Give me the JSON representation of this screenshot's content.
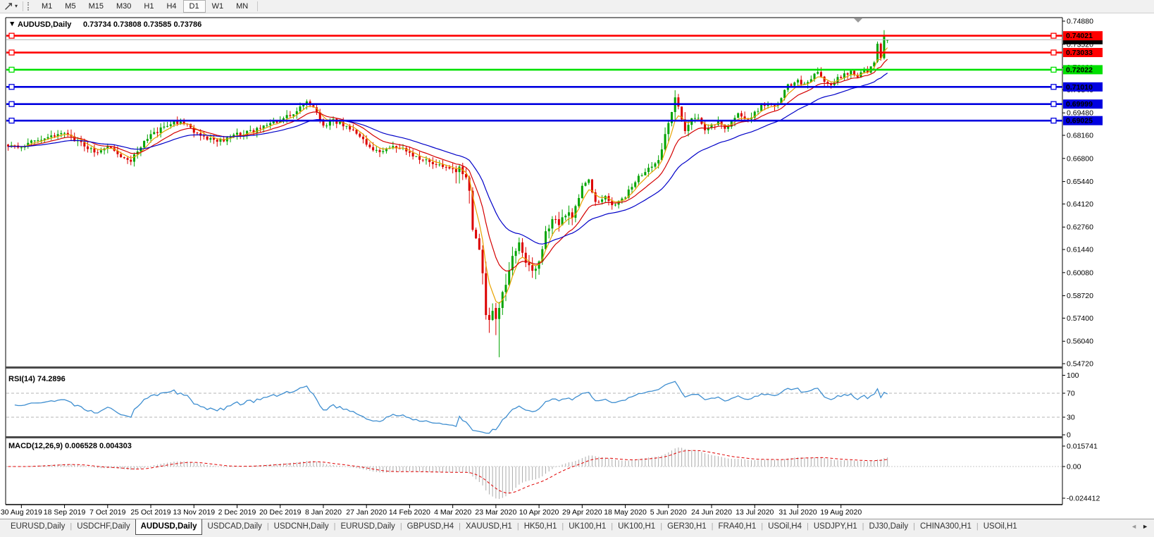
{
  "toolbar": {
    "dropdown_caret": "▾",
    "timeframes": [
      "M1",
      "M5",
      "M15",
      "M30",
      "H1",
      "H4",
      "D1",
      "W1",
      "MN"
    ],
    "active_timeframe": "D1"
  },
  "chart_data": {
    "type": "candlestick",
    "symbol_period": "AUDUSD,Daily",
    "collapse_arrow": "▼",
    "ohlc_text": "0.73734 0.73808 0.73585 0.73786",
    "open": "0.73734",
    "high": "0.73808",
    "low": "0.73585",
    "close": "0.73786",
    "candle_count": 266,
    "y_ticks": [
      {
        "label": "0.74880",
        "value": 0.7488
      },
      {
        "label": "0.73520",
        "value": 0.7352
      },
      {
        "label": "0.72160",
        "value": 0.7216
      },
      {
        "label": "0.70840",
        "value": 0.7084
      },
      {
        "label": "0.69480",
        "value": 0.6948
      },
      {
        "label": "0.68160",
        "value": 0.6816
      },
      {
        "label": "0.66800",
        "value": 0.668
      },
      {
        "label": "0.65440",
        "value": 0.6544
      },
      {
        "label": "0.64120",
        "value": 0.6412
      },
      {
        "label": "0.62760",
        "value": 0.6276
      },
      {
        "label": "0.61440",
        "value": 0.6144
      },
      {
        "label": "0.60080",
        "value": 0.6008
      },
      {
        "label": "0.58720",
        "value": 0.5872
      },
      {
        "label": "0.57400",
        "value": 0.574
      },
      {
        "label": "0.56040",
        "value": 0.5604
      },
      {
        "label": "0.54720",
        "value": 0.5472
      }
    ],
    "x_labels": [
      "30 Aug 2019",
      "18 Sep 2019",
      "7 Oct 2019",
      "25 Oct 2019",
      "13 Nov 2019",
      "2 Dec 2019",
      "20 Dec 2019",
      "8 Jan 2020",
      "27 Jan 2020",
      "14 Feb 2020",
      "4 Mar 2020",
      "23 Mar 2020",
      "10 Apr 2020",
      "29 Apr 2020",
      "18 May 2020",
      "5 Jun 2020",
      "24 Jun 2020",
      "13 Jul 2020",
      "31 Jul 2020",
      "19 Aug 2020"
    ],
    "x_label_first_index": 4,
    "x_label_step": 13,
    "price_anchors": [
      [
        0,
        0.6758
      ],
      [
        2,
        0.6745
      ],
      [
        4,
        0.6733
      ],
      [
        8,
        0.679
      ],
      [
        12,
        0.681
      ],
      [
        17,
        0.683
      ],
      [
        22,
        0.677
      ],
      [
        26,
        0.672
      ],
      [
        30,
        0.6745
      ],
      [
        34,
        0.67
      ],
      [
        37,
        0.667
      ],
      [
        40,
        0.6745
      ],
      [
        43,
        0.6825
      ],
      [
        47,
        0.686
      ],
      [
        50,
        0.6895
      ],
      [
        53,
        0.689
      ],
      [
        56,
        0.684
      ],
      [
        60,
        0.68
      ],
      [
        64,
        0.6785
      ],
      [
        69,
        0.682
      ],
      [
        74,
        0.6845
      ],
      [
        78,
        0.6875
      ],
      [
        82,
        0.69
      ],
      [
        86,
        0.6945
      ],
      [
        90,
        0.702
      ],
      [
        92,
        0.6985
      ],
      [
        95,
        0.687
      ],
      [
        98,
        0.69
      ],
      [
        101,
        0.688
      ],
      [
        104,
        0.685
      ],
      [
        108,
        0.676
      ],
      [
        112,
        0.672
      ],
      [
        116,
        0.675
      ],
      [
        121,
        0.6715
      ],
      [
        124,
        0.668
      ],
      [
        128,
        0.6655
      ],
      [
        131,
        0.662
      ],
      [
        134,
        0.663
      ],
      [
        137,
        0.6583
      ],
      [
        139,
        0.649
      ],
      [
        140,
        0.623
      ],
      [
        141,
        0.619
      ],
      [
        142,
        0.612
      ],
      [
        143,
        0.599
      ],
      [
        144,
        0.578
      ],
      [
        145,
        0.574
      ],
      [
        146,
        0.58
      ],
      [
        147,
        0.5735
      ],
      [
        148,
        0.58
      ],
      [
        149,
        0.589
      ],
      [
        150,
        0.596
      ],
      [
        152,
        0.61
      ],
      [
        154,
        0.617
      ],
      [
        156,
        0.608
      ],
      [
        158,
        0.6
      ],
      [
        160,
        0.609
      ],
      [
        162,
        0.623
      ],
      [
        164,
        0.634
      ],
      [
        166,
        0.631
      ],
      [
        168,
        0.636
      ],
      [
        170,
        0.632
      ],
      [
        173,
        0.652
      ],
      [
        175,
        0.655
      ],
      [
        177,
        0.642
      ],
      [
        180,
        0.645
      ],
      [
        183,
        0.64
      ],
      [
        186,
        0.645
      ],
      [
        188,
        0.652
      ],
      [
        190,
        0.658
      ],
      [
        192,
        0.66
      ],
      [
        194,
        0.663
      ],
      [
        196,
        0.666
      ],
      [
        198,
        0.683
      ],
      [
        200,
        0.6968
      ],
      [
        201,
        0.702
      ],
      [
        202,
        0.699
      ],
      [
        204,
        0.686
      ],
      [
        206,
        0.691
      ],
      [
        208,
        0.693
      ],
      [
        210,
        0.685
      ],
      [
        212,
        0.687
      ],
      [
        214,
        0.691
      ],
      [
        216,
        0.686
      ],
      [
        218,
        0.69
      ],
      [
        220,
        0.694
      ],
      [
        222,
        0.69
      ],
      [
        225,
        0.6945
      ],
      [
        227,
        0.699
      ],
      [
        229,
        0.701
      ],
      [
        231,
        0.698
      ],
      [
        233,
        0.704
      ],
      [
        235,
        0.711
      ],
      [
        238,
        0.714
      ],
      [
        240,
        0.711
      ],
      [
        242,
        0.7155
      ],
      [
        244,
        0.718
      ],
      [
        246,
        0.714
      ],
      [
        248,
        0.7105
      ],
      [
        250,
        0.7155
      ],
      [
        252,
        0.7175
      ],
      [
        254,
        0.719
      ],
      [
        256,
        0.716
      ],
      [
        258,
        0.7205
      ],
      [
        259,
        0.718
      ],
      [
        260,
        0.7225
      ],
      [
        261,
        0.725
      ],
      [
        262,
        0.7355
      ],
      [
        263,
        0.727
      ],
      [
        264,
        0.74
      ],
      [
        265,
        0.73786
      ]
    ],
    "key_candles": [
      {
        "i": 147,
        "o": 0.58,
        "h": 0.583,
        "l": 0.564,
        "c": 0.5735
      },
      {
        "i": 148,
        "o": 0.5735,
        "h": 0.5835,
        "l": 0.551,
        "c": 0.58
      },
      {
        "i": 262,
        "o": 0.725,
        "h": 0.7368,
        "l": 0.7242,
        "c": 0.7355
      },
      {
        "i": 263,
        "o": 0.7355,
        "h": 0.7362,
        "l": 0.7255,
        "c": 0.727
      },
      {
        "i": 264,
        "o": 0.727,
        "h": 0.7435,
        "l": 0.7262,
        "c": 0.74
      },
      {
        "i": 265,
        "o": 0.73734,
        "h": 0.73808,
        "l": 0.73585,
        "c": 0.73786
      }
    ],
    "volatility_zones": [
      {
        "from": 134,
        "to": 150,
        "mult": 2.8
      },
      {
        "from": 151,
        "to": 170,
        "mult": 1.8
      },
      {
        "from": 197,
        "to": 206,
        "mult": 1.5
      },
      {
        "from": 256,
        "to": 265,
        "mult": 0.7
      }
    ],
    "colors": {
      "up": "#00A400",
      "down": "#DC0000",
      "current_line": "#B4B4B4"
    },
    "horizontal_lines": [
      {
        "label": "0.74021",
        "value": 0.74021,
        "color": "#FF0000",
        "text_color": "#FFFFFF"
      },
      {
        "label": "0.73033",
        "value": 0.73033,
        "color": "#FF0000",
        "text_color": "#FFFFFF"
      },
      {
        "label": "0.72022",
        "value": 0.72022,
        "color": "#00E000",
        "text_color": "#000000"
      },
      {
        "label": "0.71010",
        "value": 0.7101,
        "color": "#0000E0",
        "text_color": "#FFFFFF"
      },
      {
        "label": "0.69999",
        "value": 0.69999,
        "color": "#0000E0",
        "text_color": "#FFFFFF"
      },
      {
        "label": "0.69025",
        "value": 0.69025,
        "color": "#0000E0",
        "text_color": "#FFFFFF"
      }
    ],
    "current_price": {
      "label": "0.73786",
      "value": 0.73786,
      "badge_color": "#000000",
      "text_color": "#FFFFFF"
    },
    "moving_averages": [
      {
        "period": 5,
        "color": "#E8A200"
      },
      {
        "period": 13,
        "color": "#D40000"
      },
      {
        "period": 30,
        "color": "#0000C8"
      }
    ],
    "rsi": {
      "label": "RSI(14) 74.2896",
      "period": 14,
      "color": "#3E8ED0",
      "axis_labels": [
        {
          "label": "100",
          "value": 100,
          "dashed": false
        },
        {
          "label": "70",
          "value": 70,
          "dashed": true
        },
        {
          "label": "30",
          "value": 30,
          "dashed": true
        },
        {
          "label": "0",
          "value": 0,
          "dashed": false
        }
      ]
    },
    "macd": {
      "label": "MACD(12,26,9) 0.006528 0.004303",
      "fast": 12,
      "slow": 26,
      "signal": 9,
      "histogram_color": "#ABABAB",
      "signal_color": "#E00000",
      "axis_labels": [
        {
          "label": "0.015741",
          "value": 0.015741
        },
        {
          "label": "0.00",
          "value": 0
        },
        {
          "label": "-0.024412",
          "value": -0.024412
        }
      ]
    }
  },
  "tabs": {
    "items": [
      {
        "label": "EURUSD,Daily",
        "active": false
      },
      {
        "label": "USDCHF,Daily",
        "active": false
      },
      {
        "label": "AUDUSD,Daily",
        "active": true
      },
      {
        "label": "USDCAD,Daily",
        "active": false
      },
      {
        "label": "USDCNH,Daily",
        "active": false
      },
      {
        "label": "EURUSD,Daily",
        "active": false
      },
      {
        "label": "GBPUSD,H4",
        "active": false
      },
      {
        "label": "XAUUSD,H1",
        "active": false
      },
      {
        "label": "HK50,H1",
        "active": false
      },
      {
        "label": "UK100,H1",
        "active": false
      },
      {
        "label": "UK100,H1",
        "active": false
      },
      {
        "label": "GER30,H1",
        "active": false
      },
      {
        "label": "FRA40,H1",
        "active": false
      },
      {
        "label": "USOil,H4",
        "active": false
      },
      {
        "label": "USDJPY,H1",
        "active": false
      },
      {
        "label": "DJ30,Daily",
        "active": false
      },
      {
        "label": "CHINA300,H1",
        "active": false
      },
      {
        "label": "USOil,H1",
        "active": false
      }
    ],
    "scroll_left": "◄",
    "scroll_right": "►"
  }
}
